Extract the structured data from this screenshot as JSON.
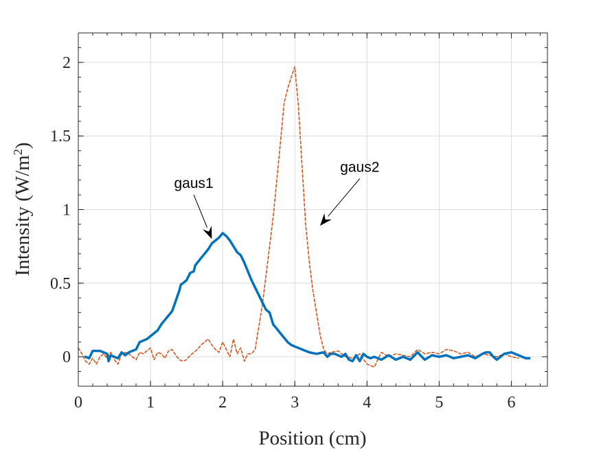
{
  "chart_data": {
    "type": "line",
    "xlabel": "Position (cm)",
    "ylabel": "Intensity (W/m",
    "ylabel_sup": "2",
    "ylabel_end": ")",
    "xlim": [
      0,
      6.5
    ],
    "ylim": [
      -0.2,
      2.2
    ],
    "xticks": [
      0,
      1,
      2,
      3,
      4,
      5,
      6
    ],
    "yticks": [
      0,
      0.5,
      1,
      1.5,
      2
    ],
    "xtick_labels": [
      "0",
      "1",
      "2",
      "3",
      "4",
      "5",
      "6"
    ],
    "ytick_labels": [
      "0",
      "0.5",
      "1",
      "1.5",
      "2"
    ],
    "grid": true,
    "series": [
      {
        "color": "#0072BD",
        "style": "solid",
        "x": [
          0.1,
          0.15,
          0.2,
          0.25,
          0.3,
          0.35,
          0.4,
          0.42,
          0.45,
          0.5,
          0.55,
          0.6,
          0.65,
          0.7,
          0.75,
          0.8,
          0.85,
          0.9,
          0.95,
          1.0,
          1.05,
          1.1,
          1.15,
          1.2,
          1.25,
          1.3,
          1.35,
          1.4,
          1.42,
          1.45,
          1.5,
          1.55,
          1.6,
          1.62,
          1.65,
          1.7,
          1.75,
          1.8,
          1.85,
          1.9,
          1.95,
          2.0,
          2.05,
          2.1,
          2.15,
          2.2,
          2.25,
          2.3,
          2.35,
          2.4,
          2.45,
          2.5,
          2.55,
          2.6,
          2.65,
          2.7,
          2.75,
          2.8,
          2.85,
          2.9,
          2.95,
          3.0,
          3.05,
          3.1,
          3.2,
          3.3,
          3.4,
          3.45,
          3.5,
          3.55,
          3.6,
          3.65,
          3.7,
          3.75,
          3.8,
          3.85,
          3.9,
          3.95,
          4.0,
          4.05,
          4.1,
          4.15,
          4.2,
          4.3,
          4.4,
          4.5,
          4.6,
          4.7,
          4.8,
          4.9,
          5.0,
          5.1,
          5.2,
          5.3,
          5.4,
          5.5,
          5.6,
          5.65,
          5.7,
          5.75,
          5.8,
          5.9,
          6.0,
          6.1,
          6.15,
          6.2,
          6.25
        ],
        "y": [
          0.0,
          -0.01,
          0.04,
          0.04,
          0.04,
          0.03,
          0.02,
          -0.03,
          0.01,
          0.0,
          -0.01,
          0.03,
          0.01,
          0.03,
          0.04,
          0.05,
          0.1,
          0.11,
          0.12,
          0.14,
          0.16,
          0.18,
          0.22,
          0.25,
          0.28,
          0.31,
          0.38,
          0.45,
          0.49,
          0.5,
          0.52,
          0.57,
          0.58,
          0.62,
          0.64,
          0.67,
          0.7,
          0.73,
          0.77,
          0.79,
          0.81,
          0.84,
          0.82,
          0.79,
          0.75,
          0.71,
          0.69,
          0.64,
          0.58,
          0.52,
          0.47,
          0.42,
          0.37,
          0.32,
          0.3,
          0.22,
          0.19,
          0.16,
          0.13,
          0.1,
          0.08,
          0.07,
          0.06,
          0.05,
          0.03,
          0.02,
          0.03,
          0.0,
          0.02,
          0.02,
          0.01,
          0.0,
          0.02,
          -0.02,
          -0.03,
          0.01,
          -0.03,
          0.02,
          0.0,
          -0.01,
          0.0,
          -0.01,
          -0.02,
          0.01,
          -0.02,
          0.0,
          -0.02,
          0.03,
          -0.02,
          0.01,
          0.0,
          0.01,
          -0.01,
          0.0,
          0.01,
          -0.01,
          0.02,
          0.03,
          0.03,
          0.0,
          -0.02,
          0.02,
          0.03,
          0.01,
          0.0,
          -0.01,
          -0.01
        ]
      },
      {
        "color": "#D95319",
        "style": "dashed",
        "x": [
          0.0,
          0.05,
          0.1,
          0.15,
          0.2,
          0.25,
          0.3,
          0.35,
          0.4,
          0.45,
          0.5,
          0.55,
          0.6,
          0.65,
          0.7,
          0.75,
          0.8,
          0.85,
          0.9,
          0.95,
          1.0,
          1.05,
          1.1,
          1.15,
          1.2,
          1.25,
          1.3,
          1.35,
          1.4,
          1.45,
          1.5,
          1.55,
          1.6,
          1.65,
          1.7,
          1.75,
          1.8,
          1.85,
          1.9,
          1.95,
          2.0,
          2.05,
          2.1,
          2.15,
          2.2,
          2.25,
          2.3,
          2.35,
          2.4,
          2.45,
          2.5,
          2.55,
          2.6,
          2.65,
          2.7,
          2.75,
          2.8,
          2.85,
          2.9,
          2.95,
          3.0,
          3.05,
          3.1,
          3.15,
          3.2,
          3.25,
          3.3,
          3.35,
          3.4,
          3.45,
          3.5,
          3.6,
          3.7,
          3.8,
          3.9,
          4.0,
          4.1,
          4.2,
          4.3,
          4.4,
          4.5,
          4.6,
          4.7,
          4.8,
          4.9,
          5.0,
          5.1,
          5.2,
          5.3,
          5.4,
          5.5,
          5.6,
          5.7,
          5.8,
          5.9,
          6.0,
          6.1
        ],
        "y": [
          0.06,
          0.02,
          -0.03,
          -0.05,
          -0.01,
          -0.05,
          0.0,
          0.02,
          -0.01,
          0.03,
          -0.02,
          -0.05,
          0.02,
          0.03,
          0.02,
          0.0,
          -0.02,
          0.03,
          0.02,
          0.04,
          0.06,
          -0.02,
          0.03,
          0.02,
          -0.01,
          0.04,
          0.05,
          0.01,
          -0.02,
          -0.03,
          -0.02,
          0.01,
          0.03,
          0.05,
          0.08,
          0.1,
          0.12,
          0.08,
          0.05,
          0.03,
          0.1,
          0.05,
          0.0,
          0.12,
          0.02,
          0.06,
          -0.03,
          0.02,
          0.02,
          0.05,
          0.2,
          0.35,
          0.55,
          0.75,
          0.95,
          1.2,
          1.45,
          1.72,
          1.82,
          1.9,
          1.97,
          1.7,
          1.3,
          0.9,
          0.65,
          0.45,
          0.3,
          0.15,
          0.05,
          0.02,
          0.03,
          0.04,
          0.0,
          -0.01,
          0.02,
          -0.05,
          -0.07,
          0.03,
          0.0,
          0.02,
          0.01,
          0.0,
          0.05,
          0.02,
          0.03,
          0.02,
          0.05,
          0.04,
          0.02,
          0.03,
          0.0,
          0.02,
          0.01,
          0.0,
          0.02,
          0.0,
          -0.01
        ]
      }
    ],
    "annotations": [
      {
        "text": "gaus1",
        "anchor_x": 1.6,
        "anchor_y": 1.1,
        "target_x": 1.85,
        "target_y": 0.8
      },
      {
        "text": "gaus2",
        "anchor_x": 3.9,
        "anchor_y": 1.21,
        "target_x": 3.35,
        "target_y": 0.89
      }
    ]
  }
}
